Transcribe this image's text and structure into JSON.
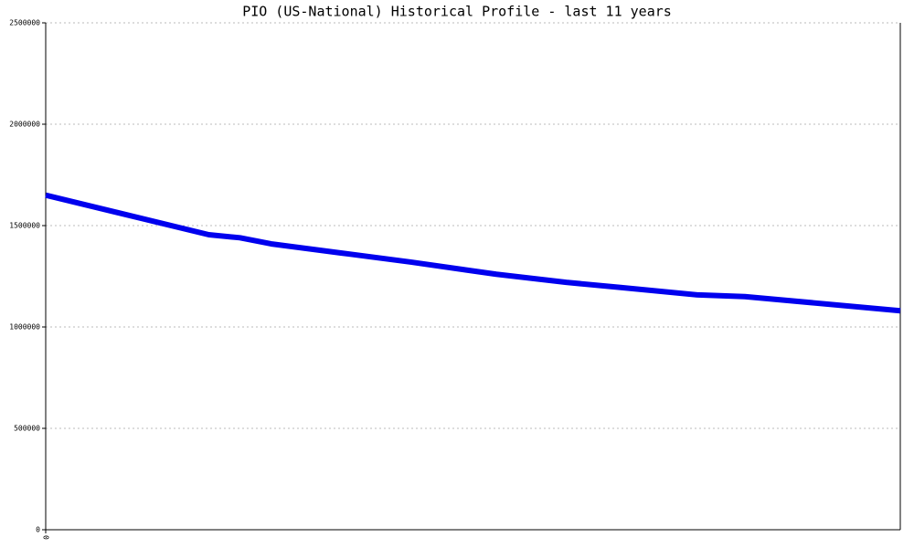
{
  "chart_data": {
    "type": "line",
    "title": "PIO (US-National) Historical Profile - last 11 years",
    "x": [
      0,
      2.1,
      2.5,
      2.9,
      3.8,
      4.7,
      5.8,
      6.7,
      7.4,
      8.4,
      9,
      11
    ],
    "series": [
      {
        "color": "#0000ee",
        "values": [
          1650000,
          1455000,
          1440000,
          1410000,
          1365000,
          1320000,
          1260000,
          1220000,
          1195000,
          1158000,
          1150000,
          1080000
        ]
      }
    ],
    "xlim": [
      0,
      11
    ],
    "xticks": [
      0
    ],
    "ylim": [
      0,
      2500000
    ],
    "yticks": [
      0,
      500000,
      1000000,
      1500000,
      2000000,
      2500000
    ],
    "grid": true
  }
}
